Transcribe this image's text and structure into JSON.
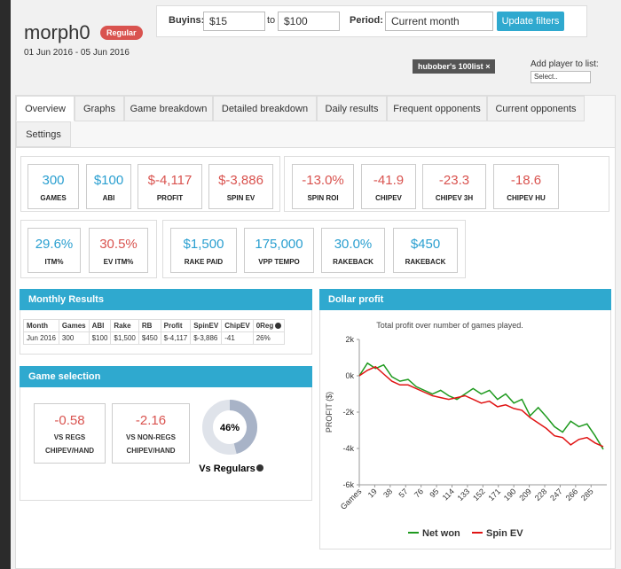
{
  "header": {
    "player": "morph0",
    "badge": "Regular",
    "dates": "01 Jun 2016 - 05 Jun 2016"
  },
  "filters": {
    "buyins_label": "Buyins:",
    "buyin_from": "$15",
    "to_label": "to",
    "buyin_to": "$100",
    "period_label": "Period:",
    "period": "Current month",
    "button": "Update filters"
  },
  "list": {
    "tag": "hubober's 100list",
    "close": "×",
    "add_label": "Add player to list:",
    "select": "Select.."
  },
  "tabs": [
    "Overview",
    "Graphs",
    "Game breakdown",
    "Detailed breakdown",
    "Daily results",
    "Frequent opponents",
    "Current opponents",
    "Settings"
  ],
  "stats": [
    [
      {
        "value": "300",
        "label": "GAMES",
        "color": "#2a9fd0"
      },
      {
        "value": "$100",
        "label": "ABI",
        "color": "#2a9fd0"
      },
      {
        "value": "$-4,117",
        "label": "PROFIT",
        "color": "#d9534f"
      },
      {
        "value": "$-3,886",
        "label": "SPIN EV",
        "color": "#d9534f"
      }
    ],
    [
      {
        "value": "-13.0%",
        "label": "SPIN ROI",
        "color": "#d9534f"
      },
      {
        "value": "-41.9",
        "label": "CHIPEV",
        "color": "#d9534f"
      },
      {
        "value": "-23.3",
        "label": "CHIPEV 3H",
        "color": "#d9534f"
      },
      {
        "value": "-18.6",
        "label": "CHIPEV HU",
        "color": "#d9534f"
      }
    ],
    [
      {
        "value": "29.6%",
        "label": "ITM%",
        "color": "#2a9fd0"
      },
      {
        "value": "30.5%",
        "label": "EV ITM%",
        "color": "#d9534f"
      }
    ],
    [
      {
        "value": "$1,500",
        "label": "RAKE PAID",
        "color": "#2a9fd0"
      },
      {
        "value": "175,000",
        "label": "VPP TEMPO",
        "color": "#2a9fd0"
      },
      {
        "value": "30.0%",
        "label": "RAKEBACK",
        "color": "#2a9fd0"
      },
      {
        "value": "$450",
        "label": "RAKEBACK",
        "color": "#2a9fd0"
      }
    ]
  ],
  "monthly": {
    "title": "Monthly Results",
    "headers": [
      "Month",
      "Games",
      "ABI",
      "Rake",
      "RB",
      "Profit",
      "SpinEV",
      "ChipEV",
      "0Reg"
    ],
    "rows": [
      [
        "Jun 2016",
        "300",
        "$100",
        "$1,500",
        "$450",
        "$-4,117",
        "$-3,886",
        "-41",
        "26%"
      ]
    ]
  },
  "game_selection": {
    "title": "Game selection",
    "items": [
      {
        "value": "-0.58",
        "label": "VS REGS",
        "sub": "CHIPEV/HAND"
      },
      {
        "value": "-2.16",
        "label": "VS NON-REGS",
        "sub": "CHIPEV/HAND"
      }
    ],
    "donut": {
      "value": 46,
      "value_label": "46%",
      "label": "Vs Regulars"
    }
  },
  "chart_data": {
    "type": "line",
    "title": "Dollar profit",
    "subtitle": "Total profit over number of games played.",
    "ylabel": "PROFIT ($)",
    "x": [
      0,
      10,
      20,
      30,
      40,
      50,
      60,
      70,
      80,
      90,
      100,
      110,
      120,
      130,
      140,
      150,
      160,
      170,
      180,
      190,
      200,
      210,
      220,
      230,
      240,
      250,
      260,
      270,
      280,
      290,
      300
    ],
    "xlim": [
      0,
      300
    ],
    "xticks": [
      {
        "value": 0,
        "label": "Games"
      },
      19,
      38,
      57,
      76,
      95,
      114,
      133,
      152,
      171,
      190,
      209,
      228,
      247,
      266,
      285
    ],
    "ylim": [
      -6000,
      2000
    ],
    "yticks": [
      {
        "value": 2000,
        "label": "2k"
      },
      {
        "value": 0,
        "label": "0k"
      },
      {
        "value": -2000,
        "label": "-2k"
      },
      {
        "value": -4000,
        "label": "-4k"
      },
      {
        "value": -6000,
        "label": "-6k"
      }
    ],
    "series": [
      {
        "name": "Net won",
        "color": "#1f9a1f",
        "values": [
          0,
          700,
          400,
          600,
          -50,
          -300,
          -200,
          -600,
          -800,
          -1000,
          -800,
          -1100,
          -1300,
          -1000,
          -700,
          -1000,
          -800,
          -1300,
          -1000,
          -1500,
          -1300,
          -2200,
          -1750,
          -2250,
          -2800,
          -3100,
          -2500,
          -2800,
          -2650,
          -3300,
          -4050
        ]
      },
      {
        "name": "Spin EV",
        "color": "#e01414",
        "values": [
          0,
          300,
          500,
          100,
          -300,
          -500,
          -500,
          -700,
          -900,
          -1100,
          -1200,
          -1300,
          -1200,
          -1100,
          -1300,
          -1500,
          -1400,
          -1700,
          -1600,
          -1800,
          -1900,
          -2300,
          -2600,
          -2900,
          -3300,
          -3400,
          -3800,
          -3500,
          -3400,
          -3700,
          -3900
        ]
      }
    ]
  }
}
